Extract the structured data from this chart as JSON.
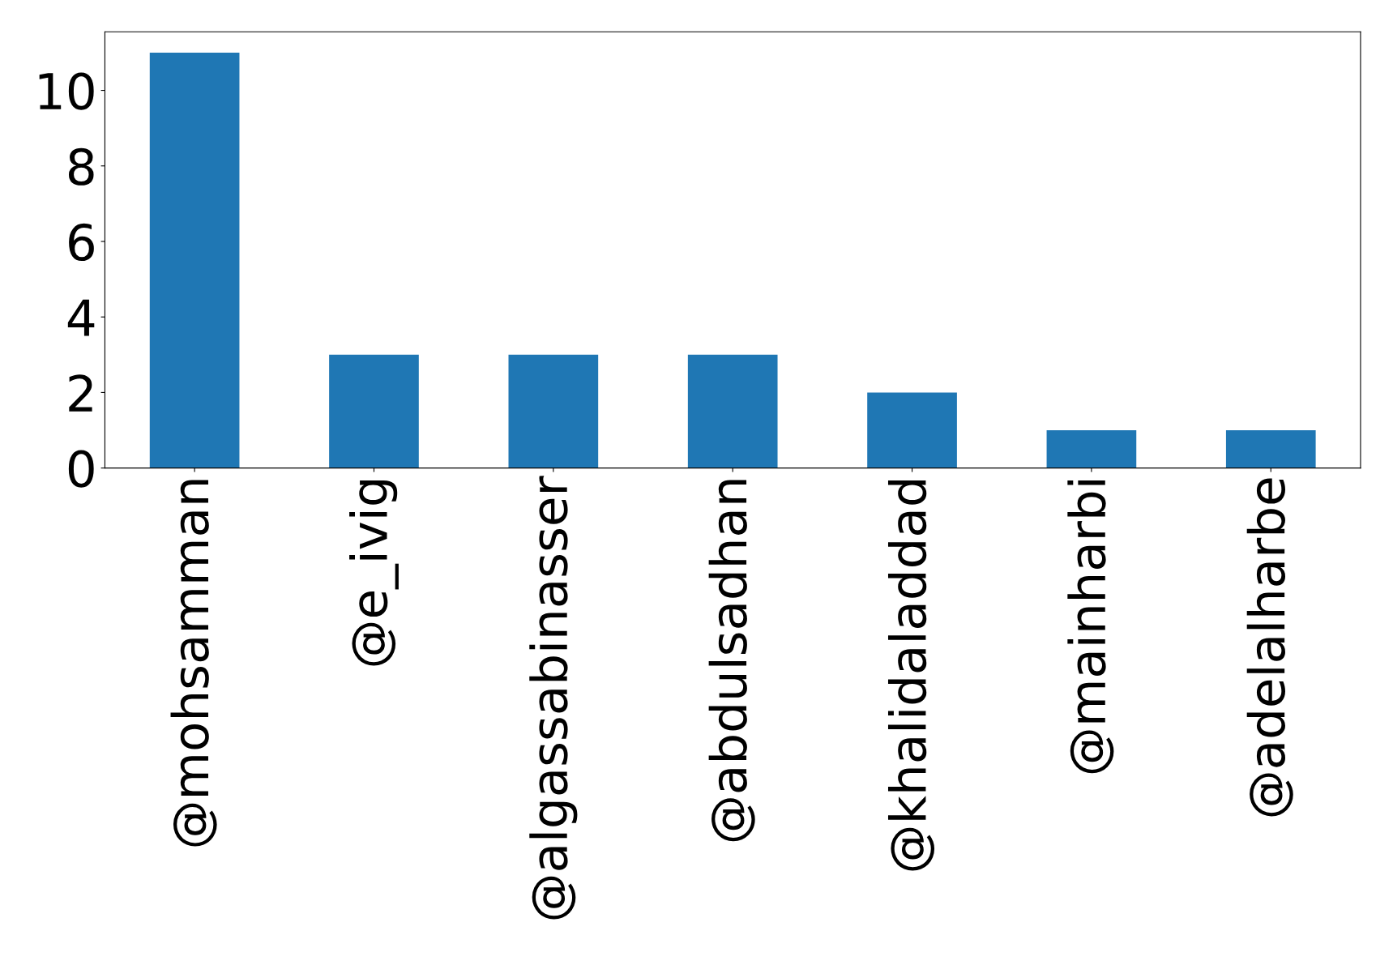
{
  "chart_data": {
    "type": "bar",
    "categories": [
      "@mohsamman",
      "@e_ivig",
      "@algassabinasser",
      "@abdulsadhan",
      "@khalidaladdad",
      "@mainharbi",
      "@adelalharbe"
    ],
    "values": [
      11,
      3,
      3,
      3,
      2,
      1,
      1
    ],
    "color": "#1f77b4",
    "ylim": [
      0,
      11.55
    ],
    "yticks": [
      0,
      2,
      4,
      6,
      8,
      10
    ],
    "grid": false,
    "legend": false
  }
}
